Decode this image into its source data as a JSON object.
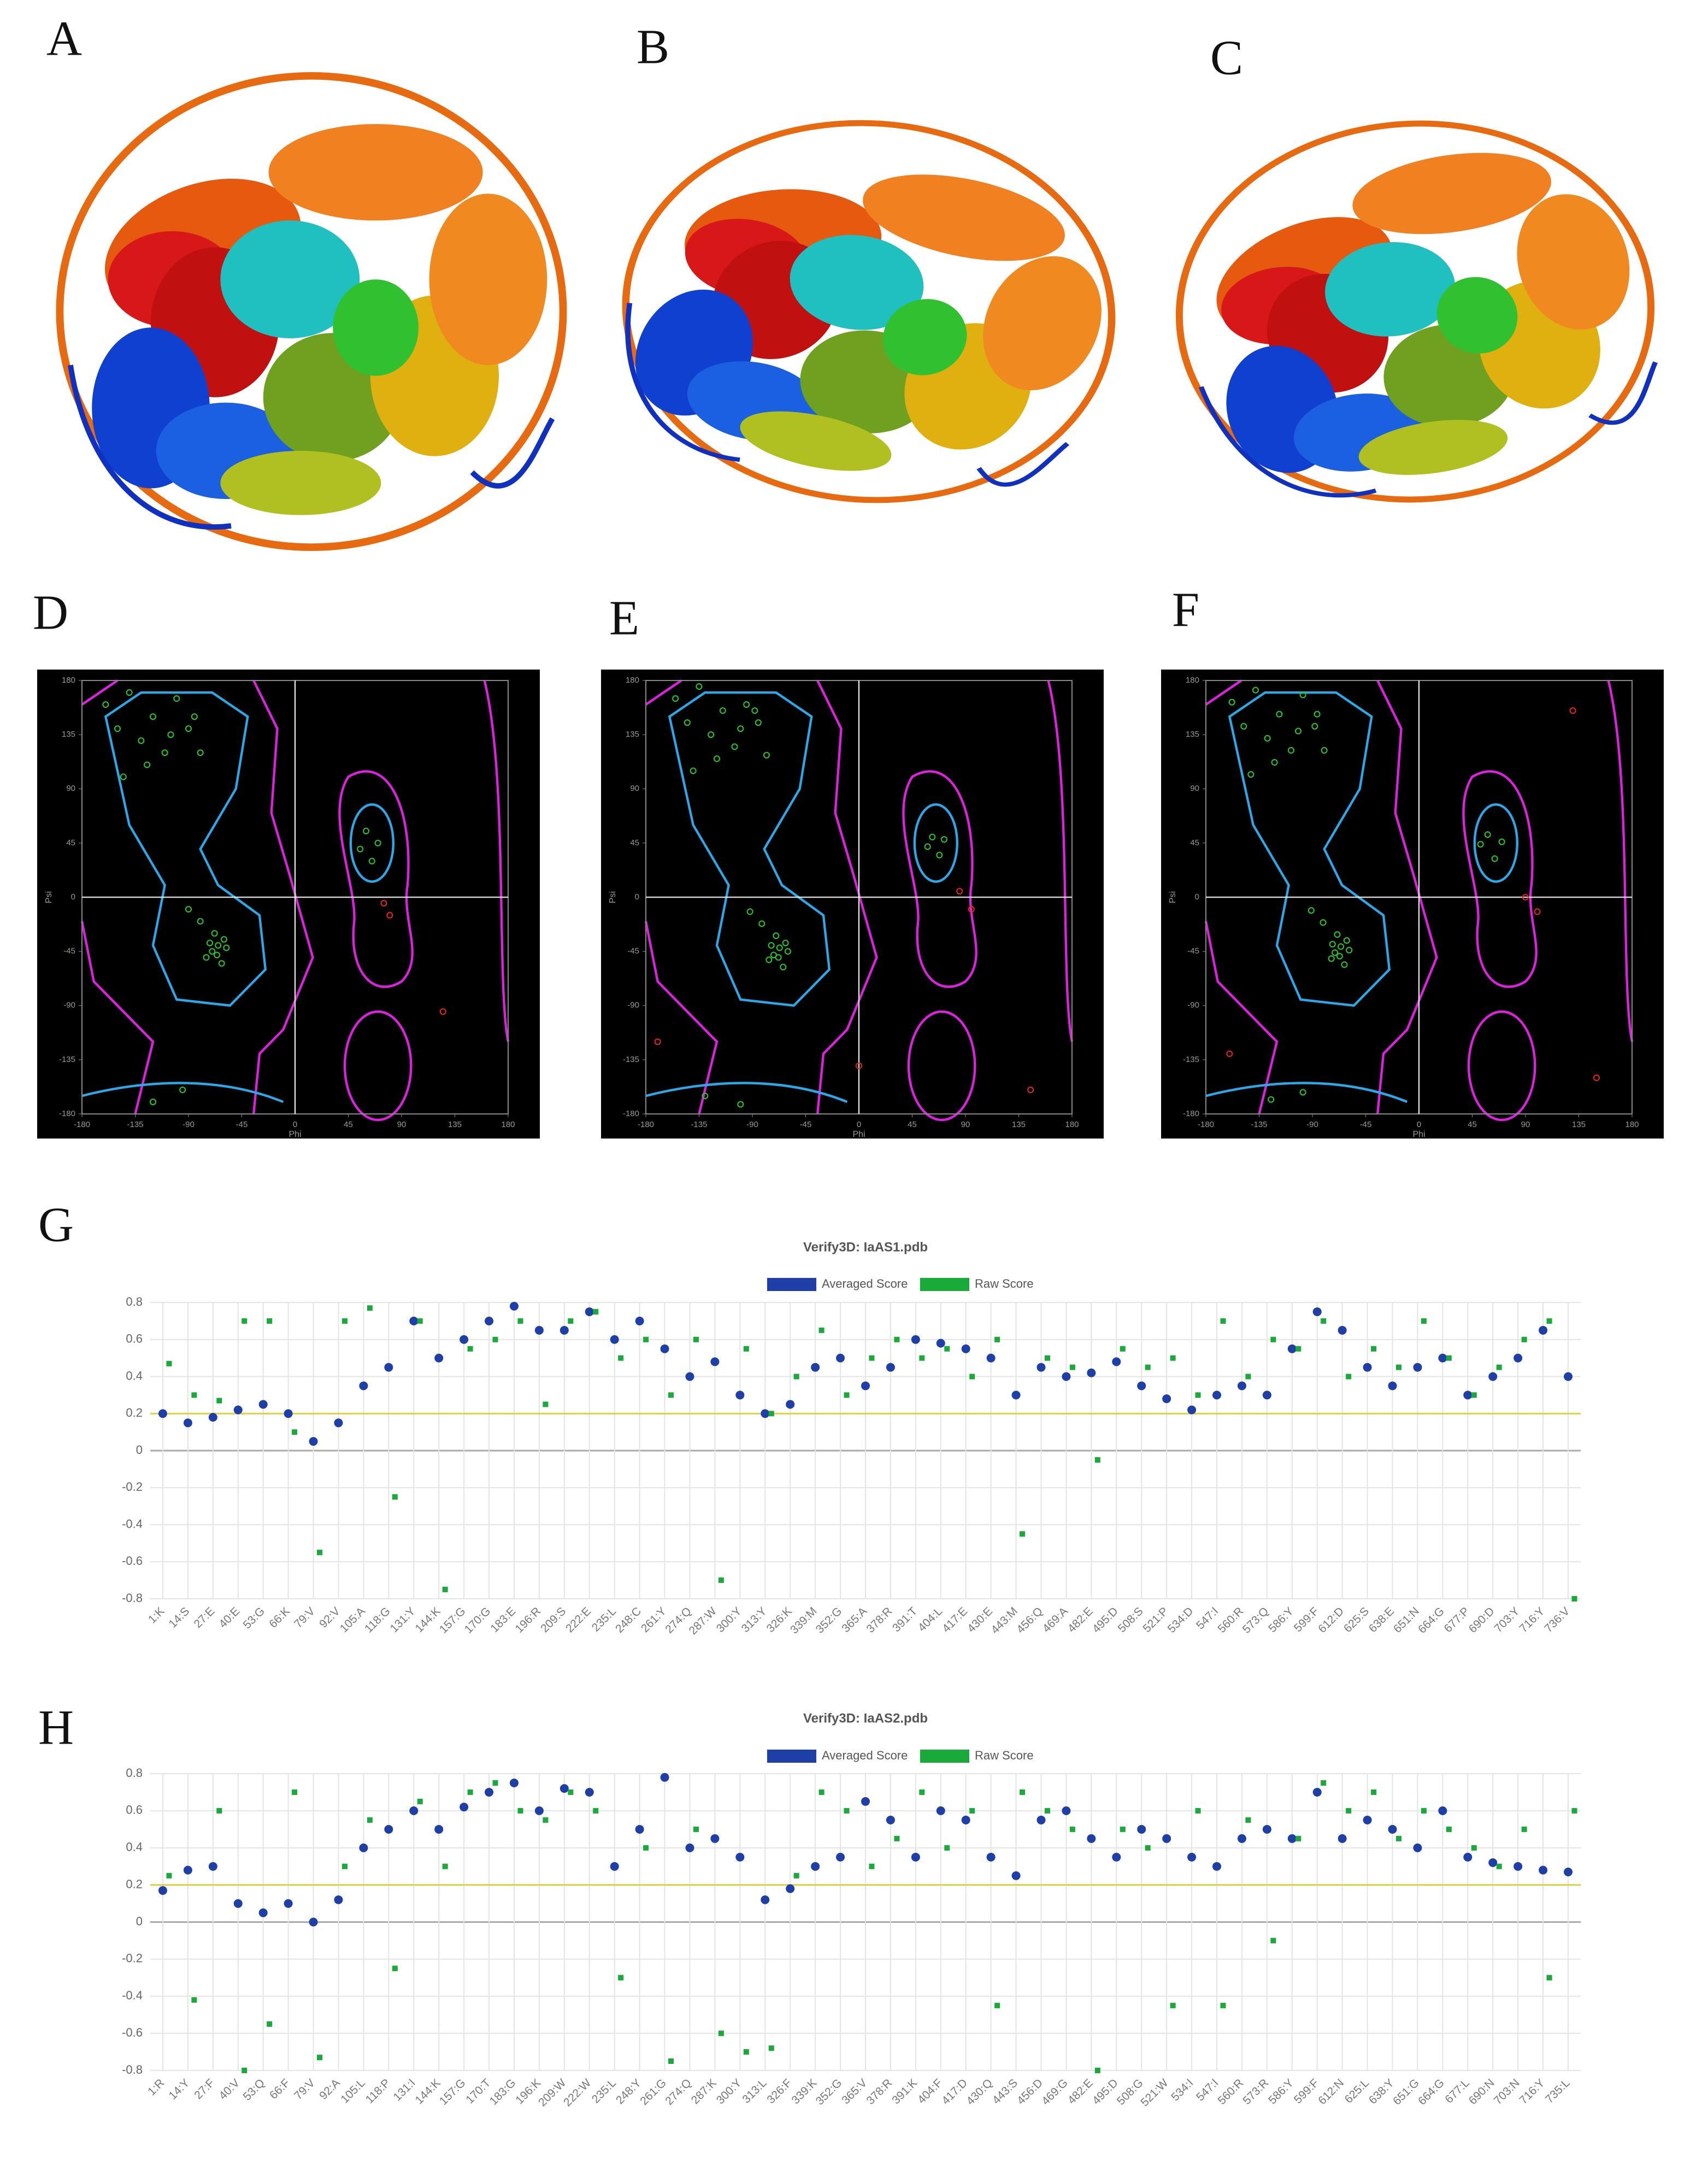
{
  "panel_labels": [
    "A",
    "B",
    "C",
    "D",
    "E",
    "F",
    "G",
    "H"
  ],
  "chart_data": [
    {
      "type": "scatter",
      "x_label": "Phi",
      "y_label": "Psi",
      "xlim": [
        -180,
        180
      ],
      "ylim": [
        -180,
        180
      ],
      "xticks": [
        -180,
        -135,
        -90,
        -45,
        0,
        45,
        90,
        135,
        180
      ],
      "yticks": [
        -180,
        -135,
        -90,
        -45,
        0,
        45,
        90,
        135,
        180
      ],
      "series": [
        {
          "color": "#22cc22",
          "x": [
            -160,
            -150,
            -140,
            -130,
            -120,
            -110,
            -100,
            -90,
            -80,
            -145,
            -125,
            -105,
            -85,
            -70,
            -65,
            -60,
            -75,
            -68,
            -62,
            -58,
            -72,
            -66,
            -80,
            -90,
            55,
            60,
            65,
            70,
            -120,
            -95
          ],
          "values": [
            160,
            140,
            170,
            130,
            150,
            120,
            165,
            140,
            120,
            100,
            110,
            135,
            150,
            -45,
            -40,
            -35,
            -50,
            -30,
            -55,
            -42,
            -38,
            -48,
            -20,
            -10,
            40,
            55,
            30,
            45,
            -170,
            -160
          ]
        },
        {
          "color": "#ee2222",
          "x": [
            75,
            80,
            125
          ],
          "values": [
            -5,
            -15,
            -95
          ]
        }
      ]
    },
    {
      "type": "scatter",
      "x_label": "Phi",
      "y_label": "Psi",
      "xlim": [
        -180,
        180
      ],
      "ylim": [
        -180,
        180
      ],
      "xticks": [
        -180,
        -135,
        -90,
        -45,
        0,
        45,
        90,
        135,
        180
      ],
      "yticks": [
        -180,
        -135,
        -90,
        -45,
        0,
        45,
        90,
        135,
        180
      ],
      "series": [
        {
          "color": "#22cc22",
          "x": [
            -155,
            -145,
            -135,
            -125,
            -115,
            -105,
            -95,
            -85,
            -78,
            -140,
            -120,
            -100,
            -88,
            -72,
            -67,
            -62,
            -76,
            -70,
            -64,
            -60,
            -74,
            -68,
            -82,
            -92,
            58,
            62,
            68,
            72,
            -130,
            -100
          ],
          "values": [
            165,
            145,
            175,
            135,
            155,
            125,
            160,
            145,
            118,
            105,
            115,
            140,
            155,
            -48,
            -42,
            -38,
            -52,
            -32,
            -58,
            -45,
            -40,
            -50,
            -22,
            -12,
            42,
            50,
            35,
            48,
            -165,
            -172
          ]
        },
        {
          "color": "#ee2222",
          "x": [
            85,
            95,
            -170,
            0,
            145
          ],
          "values": [
            5,
            -10,
            -120,
            -140,
            -160
          ]
        }
      ]
    },
    {
      "type": "scatter",
      "x_label": "Phi",
      "y_label": "Psi",
      "xlim": [
        -180,
        180
      ],
      "ylim": [
        -180,
        180
      ],
      "xticks": [
        -180,
        -135,
        -90,
        -45,
        0,
        45,
        90,
        135,
        180
      ],
      "yticks": [
        -180,
        -135,
        -90,
        -45,
        0,
        45,
        90,
        135,
        180
      ],
      "series": [
        {
          "color": "#22cc22",
          "x": [
            -158,
            -148,
            -138,
            -128,
            -118,
            -108,
            -98,
            -88,
            -80,
            -142,
            -122,
            -102,
            -86,
            -71,
            -66,
            -61,
            -74,
            -69,
            -63,
            -59,
            -73,
            -67,
            -81,
            -91,
            52,
            58,
            64,
            70,
            -125,
            -98
          ],
          "values": [
            162,
            142,
            172,
            132,
            152,
            122,
            168,
            142,
            122,
            102,
            112,
            138,
            152,
            -46,
            -41,
            -36,
            -51,
            -31,
            -56,
            -44,
            -39,
            -49,
            -21,
            -11,
            44,
            52,
            32,
            46,
            -168,
            -162
          ]
        },
        {
          "color": "#ee2222",
          "x": [
            90,
            100,
            130,
            150,
            -160
          ],
          "values": [
            0,
            -12,
            155,
            -150,
            -130
          ]
        }
      ]
    },
    {
      "type": "scatter",
      "title": "Verify3D: IaAS1.pdb",
      "categories": [
        "1:K",
        "14:S",
        "27:E",
        "40:E",
        "53:G",
        "66:K",
        "79:V",
        "92:V",
        "105:A",
        "118:G",
        "131:Y",
        "144:K",
        "157:G",
        "170:G",
        "183:E",
        "196:R",
        "209:S",
        "222:E",
        "235:L",
        "248:C",
        "261:Y",
        "274:Q",
        "287:W",
        "300:Y",
        "313:Y",
        "326:K",
        "339:M",
        "352:G",
        "365:A",
        "378:R",
        "391:T",
        "404:L",
        "417:E",
        "430:E",
        "443:M",
        "456:Q",
        "469:A",
        "482:E",
        "495:D",
        "508:S",
        "521:P",
        "534:D",
        "547:I",
        "560:R",
        "573:Q",
        "586:Y",
        "599:F",
        "612:D",
        "625:S",
        "638:E",
        "651:N",
        "664:G",
        "677:P",
        "690:D",
        "703:Y",
        "716:Y",
        "736:V"
      ],
      "series": [
        {
          "name": "Averaged Score",
          "color": "#1f3fa8",
          "values": [
            0.2,
            0.15,
            0.18,
            0.22,
            0.25,
            0.2,
            0.05,
            0.15,
            0.35,
            0.45,
            0.7,
            0.5,
            0.6,
            0.7,
            0.78,
            0.65,
            0.65,
            0.75,
            0.6,
            0.7,
            0.55,
            0.4,
            0.48,
            0.3,
            0.2,
            0.25,
            0.45,
            0.5,
            0.35,
            0.45,
            0.6,
            0.58,
            0.55,
            0.5,
            0.3,
            0.45,
            0.4,
            0.42,
            0.48,
            0.35,
            0.28,
            0.22,
            0.3,
            0.35,
            0.3,
            0.55,
            0.75,
            0.65,
            0.45,
            0.35,
            0.45,
            0.5,
            0.3,
            0.4,
            0.5,
            0.65,
            0.4
          ]
        },
        {
          "name": "Raw Score",
          "color": "#1aaa3a",
          "values": [
            0.47,
            0.3,
            0.27,
            0.7,
            0.7,
            0.1,
            -0.55,
            0.7,
            0.77,
            -0.25,
            0.7,
            -0.75,
            0.55,
            0.6,
            0.7,
            0.25,
            0.7,
            0.75,
            0.5,
            0.6,
            0.3,
            0.6,
            -0.7,
            0.55,
            0.2,
            0.4,
            0.65,
            0.3,
            0.5,
            0.6,
            0.5,
            0.55,
            0.4,
            0.6,
            -0.45,
            0.5,
            0.45,
            -0.05,
            0.55,
            0.45,
            0.5,
            0.3,
            0.7,
            0.4,
            0.6,
            0.55,
            0.7,
            0.4,
            0.55,
            0.45,
            0.7,
            0.5,
            0.3,
            0.45,
            0.6,
            0.7,
            -0.8
          ]
        }
      ],
      "ylim": [
        -0.8,
        0.8
      ],
      "yticks": [
        0.8,
        0.6,
        0.4,
        0.2,
        0,
        -0.2,
        -0.4,
        -0.6,
        -0.8
      ],
      "threshold": 0.2,
      "grid": true
    },
    {
      "type": "scatter",
      "title": "Verify3D: IaAS2.pdb",
      "categories": [
        "1:R",
        "14:Y",
        "27:F",
        "40:V",
        "53:Q",
        "66:F",
        "79:V",
        "92:A",
        "105:L",
        "118:P",
        "131:I",
        "144:K",
        "157:G",
        "170:T",
        "183:G",
        "196:K",
        "209:W",
        "222:W",
        "235:L",
        "248:Y",
        "261:G",
        "274:Q",
        "287:K",
        "300:Y",
        "313:L",
        "326:F",
        "339:K",
        "352:G",
        "365:V",
        "378:R",
        "391:K",
        "404:F",
        "417:D",
        "430:Q",
        "443:S",
        "456:D",
        "469:G",
        "482:E",
        "495:D",
        "508:G",
        "521:W",
        "534:I",
        "547:I",
        "560:R",
        "573:R",
        "586:Y",
        "599:F",
        "612:N",
        "625:L",
        "638:Y",
        "651:G",
        "664:G",
        "677:L",
        "690:N",
        "703:N",
        "716:Y",
        "735:L"
      ],
      "series": [
        {
          "name": "Averaged Score",
          "color": "#1f3fa8",
          "values": [
            0.17,
            0.28,
            0.3,
            0.1,
            0.05,
            0.1,
            0.0,
            0.12,
            0.4,
            0.5,
            0.6,
            0.5,
            0.62,
            0.7,
            0.75,
            0.6,
            0.72,
            0.7,
            0.3,
            0.5,
            0.78,
            0.4,
            0.45,
            0.35,
            0.12,
            0.18,
            0.3,
            0.35,
            0.65,
            0.55,
            0.35,
            0.6,
            0.55,
            0.35,
            0.25,
            0.55,
            0.6,
            0.45,
            0.35,
            0.5,
            0.45,
            0.35,
            0.3,
            0.45,
            0.5,
            0.45,
            0.7,
            0.45,
            0.55,
            0.5,
            0.4,
            0.6,
            0.35,
            0.32,
            0.3,
            0.28,
            0.27
          ]
        },
        {
          "name": "Raw Score",
          "color": "#1aaa3a",
          "values": [
            0.25,
            -0.42,
            0.6,
            -0.8,
            -0.55,
            0.7,
            -0.73,
            0.3,
            0.55,
            -0.25,
            0.65,
            0.3,
            0.7,
            0.75,
            0.6,
            0.55,
            0.7,
            0.6,
            -0.3,
            0.4,
            -0.75,
            0.5,
            -0.6,
            -0.7,
            -0.68,
            0.25,
            0.7,
            0.6,
            0.3,
            0.45,
            0.7,
            0.4,
            0.6,
            -0.45,
            0.7,
            0.6,
            0.5,
            -0.8,
            0.5,
            0.4,
            -0.45,
            0.6,
            -0.45,
            0.55,
            -0.1,
            0.45,
            0.75,
            0.6,
            0.7,
            0.45,
            0.6,
            0.5,
            0.4,
            0.3,
            0.5,
            -0.3,
            0.6
          ]
        }
      ],
      "ylim": [
        -0.8,
        0.8
      ],
      "yticks": [
        0.8,
        0.6,
        0.4,
        0.2,
        0,
        -0.2,
        -0.4,
        -0.6,
        -0.8
      ],
      "threshold": 0.2,
      "grid": true
    }
  ]
}
